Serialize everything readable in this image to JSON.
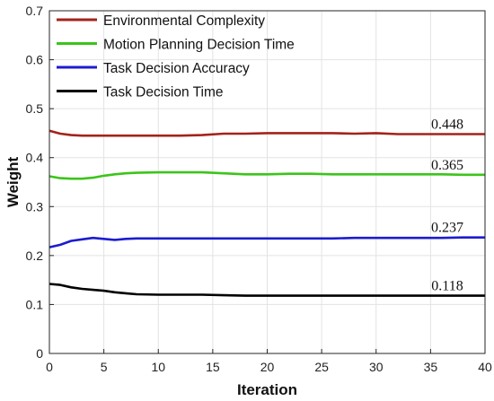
{
  "chart_data": {
    "type": "line",
    "xlabel": "Iteration",
    "ylabel": "Weight",
    "xlim": [
      0,
      40
    ],
    "ylim": [
      0,
      0.7
    ],
    "x_ticks": [
      0,
      5,
      10,
      15,
      20,
      25,
      30,
      35,
      40
    ],
    "y_ticks": [
      0,
      0.1,
      0.2,
      0.3,
      0.4,
      0.5,
      0.6,
      0.7
    ],
    "x_tick_labels": [
      "0",
      "5",
      "10",
      "15",
      "20",
      "25",
      "30",
      "35",
      "40"
    ],
    "y_tick_labels": [
      "0",
      "0.1",
      "0.2",
      "0.3",
      "0.4",
      "0.5",
      "0.6",
      "0.7"
    ],
    "grid": true,
    "legend_position": "top-left",
    "series": [
      {
        "name": "Environmental Complexity",
        "color": "#a3231a",
        "end_label": "0.448",
        "x": [
          0,
          1,
          2,
          3,
          4,
          5,
          6,
          7,
          8,
          10,
          12,
          14,
          16,
          18,
          20,
          22,
          24,
          26,
          28,
          30,
          32,
          34,
          36,
          38,
          40
        ],
        "y": [
          0.455,
          0.449,
          0.446,
          0.445,
          0.445,
          0.445,
          0.445,
          0.445,
          0.445,
          0.445,
          0.445,
          0.446,
          0.449,
          0.449,
          0.45,
          0.45,
          0.45,
          0.45,
          0.449,
          0.45,
          0.448,
          0.448,
          0.448,
          0.448,
          0.448
        ]
      },
      {
        "name": "Motion Planning Decision Time",
        "color": "#3cc41a",
        "end_label": "0.365",
        "x": [
          0,
          1,
          2,
          3,
          4,
          5,
          6,
          7,
          8,
          10,
          12,
          14,
          16,
          18,
          20,
          22,
          24,
          26,
          28,
          30,
          32,
          34,
          36,
          38,
          40
        ],
        "y": [
          0.362,
          0.358,
          0.357,
          0.357,
          0.359,
          0.363,
          0.366,
          0.368,
          0.369,
          0.37,
          0.37,
          0.37,
          0.368,
          0.366,
          0.366,
          0.367,
          0.367,
          0.366,
          0.366,
          0.366,
          0.366,
          0.366,
          0.366,
          0.365,
          0.365
        ]
      },
      {
        "name": "Task Decision Accuracy",
        "color": "#1c1ccf",
        "end_label": "0.237",
        "x": [
          0,
          1,
          2,
          3,
          4,
          5,
          6,
          7,
          8,
          10,
          12,
          14,
          16,
          18,
          20,
          22,
          24,
          26,
          28,
          30,
          32,
          34,
          36,
          38,
          40
        ],
        "y": [
          0.217,
          0.222,
          0.23,
          0.233,
          0.236,
          0.234,
          0.232,
          0.234,
          0.235,
          0.235,
          0.235,
          0.235,
          0.235,
          0.235,
          0.235,
          0.235,
          0.235,
          0.235,
          0.236,
          0.236,
          0.236,
          0.236,
          0.236,
          0.237,
          0.237
        ]
      },
      {
        "name": "Task Decision Time",
        "color": "#000000",
        "end_label": "0.118",
        "x": [
          0,
          1,
          2,
          3,
          4,
          5,
          6,
          7,
          8,
          10,
          12,
          14,
          16,
          18,
          20,
          22,
          24,
          26,
          28,
          30,
          32,
          34,
          36,
          38,
          40
        ],
        "y": [
          0.142,
          0.14,
          0.135,
          0.132,
          0.13,
          0.128,
          0.125,
          0.123,
          0.121,
          0.12,
          0.12,
          0.12,
          0.119,
          0.118,
          0.118,
          0.118,
          0.118,
          0.118,
          0.118,
          0.118,
          0.118,
          0.118,
          0.118,
          0.118,
          0.118
        ]
      }
    ]
  }
}
